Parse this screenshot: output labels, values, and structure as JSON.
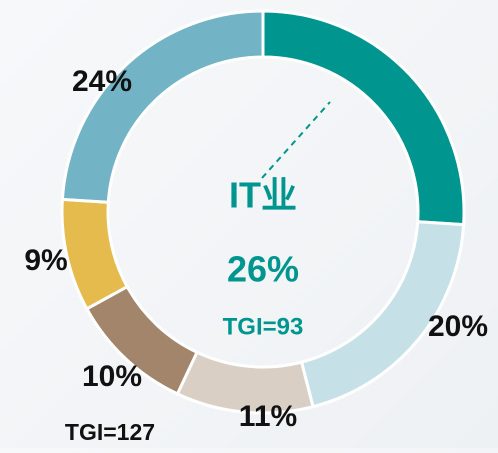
{
  "chart_data": {
    "type": "donut",
    "categories": [
      "IT业",
      null,
      null,
      null,
      null,
      null
    ],
    "values": [
      26,
      20,
      11,
      10,
      9,
      24
    ],
    "value_labels": [
      "26%",
      "20%",
      "11%",
      "10%",
      "9%",
      "24%"
    ],
    "colors": [
      "#00968f",
      "#c6e0e8",
      "#dacfc5",
      "#a2856a",
      "#e6bb4e",
      "#72b4c5"
    ],
    "annotations": [
      "TGI=93",
      "TGI=127"
    ]
  }
}
